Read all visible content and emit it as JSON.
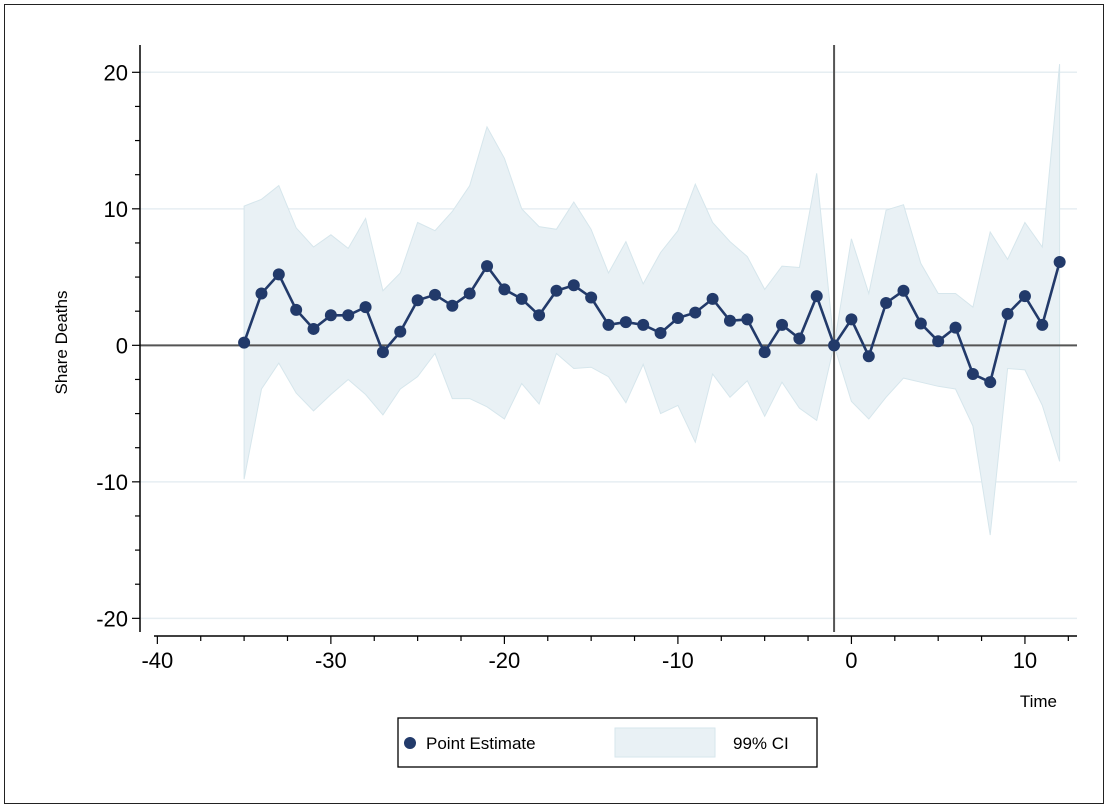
{
  "chart_data": {
    "type": "line",
    "xlabel": "Time",
    "ylabel": "Share Deaths",
    "xlim": [
      -41,
      13
    ],
    "ylim": [
      -21,
      22
    ],
    "xticks": [
      -40,
      -30,
      -20,
      -10,
      0,
      10
    ],
    "yticks": [
      -20,
      -10,
      0,
      10,
      20
    ],
    "xtick_labels": [
      "-40",
      "-30",
      "-20",
      "-10",
      "0",
      "10"
    ],
    "ytick_labels": [
      "-20",
      "-10",
      "0",
      "10",
      "20"
    ],
    "reference_lines": {
      "horizontal_y": 0,
      "vertical_x": -1
    },
    "grid": "horizontal",
    "legend": {
      "position": "bottom-center",
      "entries": [
        "Point Estimate",
        "99% CI"
      ]
    },
    "colors": {
      "point_estimate": "#223a6a",
      "ci_fill": "#e9f1f5",
      "ci_edge": "#d6e6ec",
      "reference": "#555555",
      "grid": "#e6eef2"
    },
    "x": [
      -35,
      -34,
      -33,
      -32,
      -31,
      -30,
      -29,
      -28,
      -27,
      -26,
      -25,
      -24,
      -23,
      -22,
      -21,
      -20,
      -19,
      -18,
      -17,
      -16,
      -15,
      -14,
      -13,
      -12,
      -11,
      -10,
      -9,
      -8,
      -7,
      -6,
      -5,
      -4,
      -3,
      -2,
      -1,
      0,
      1,
      2,
      3,
      4,
      5,
      6,
      7,
      8,
      9,
      10,
      11,
      12
    ],
    "series": [
      {
        "name": "Point Estimate",
        "values": [
          0.2,
          3.8,
          5.2,
          2.6,
          1.2,
          2.2,
          2.2,
          2.8,
          -0.5,
          1.0,
          3.3,
          3.7,
          2.9,
          3.8,
          5.8,
          4.1,
          3.4,
          2.2,
          4.0,
          4.4,
          3.5,
          1.5,
          1.7,
          1.5,
          0.9,
          2.0,
          2.4,
          3.4,
          1.8,
          1.9,
          -0.5,
          1.5,
          0.5,
          3.6,
          0.0,
          1.9,
          -0.8,
          3.1,
          4.0,
          1.6,
          0.3,
          1.3,
          -2.1,
          -2.7,
          2.3,
          3.6,
          1.5,
          6.1
        ]
      },
      {
        "name": "99% CI",
        "lower": [
          -9.8,
          -3.2,
          -1.3,
          -3.5,
          -4.8,
          -3.6,
          -2.5,
          -3.6,
          -5.1,
          -3.2,
          -2.3,
          -0.6,
          -3.9,
          -3.9,
          -4.5,
          -5.4,
          -2.8,
          -4.3,
          -0.6,
          -1.7,
          -1.6,
          -2.3,
          -4.2,
          -1.4,
          -5.0,
          -4.4,
          -7.1,
          -2.1,
          -3.8,
          -2.6,
          -5.2,
          -2.7,
          -4.6,
          -5.5,
          0.0,
          -4.1,
          -5.4,
          -3.8,
          -2.4,
          -2.7,
          -3.0,
          -3.2,
          -5.9,
          -13.9,
          -1.7,
          -1.8,
          -4.4,
          -8.5
        ],
        "upper": [
          10.2,
          10.7,
          11.7,
          8.6,
          7.2,
          8.1,
          7.1,
          9.3,
          4.0,
          5.3,
          9.0,
          8.4,
          9.8,
          11.7,
          16.0,
          13.7,
          10.0,
          8.7,
          8.5,
          10.5,
          8.5,
          5.3,
          7.6,
          4.5,
          6.8,
          8.4,
          11.8,
          9.0,
          7.6,
          6.5,
          4.1,
          5.8,
          5.7,
          12.6,
          0.0,
          7.8,
          3.8,
          9.9,
          10.3,
          6.0,
          3.8,
          3.8,
          2.8,
          8.3,
          6.3,
          9.0,
          7.2,
          20.6
        ]
      }
    ]
  }
}
